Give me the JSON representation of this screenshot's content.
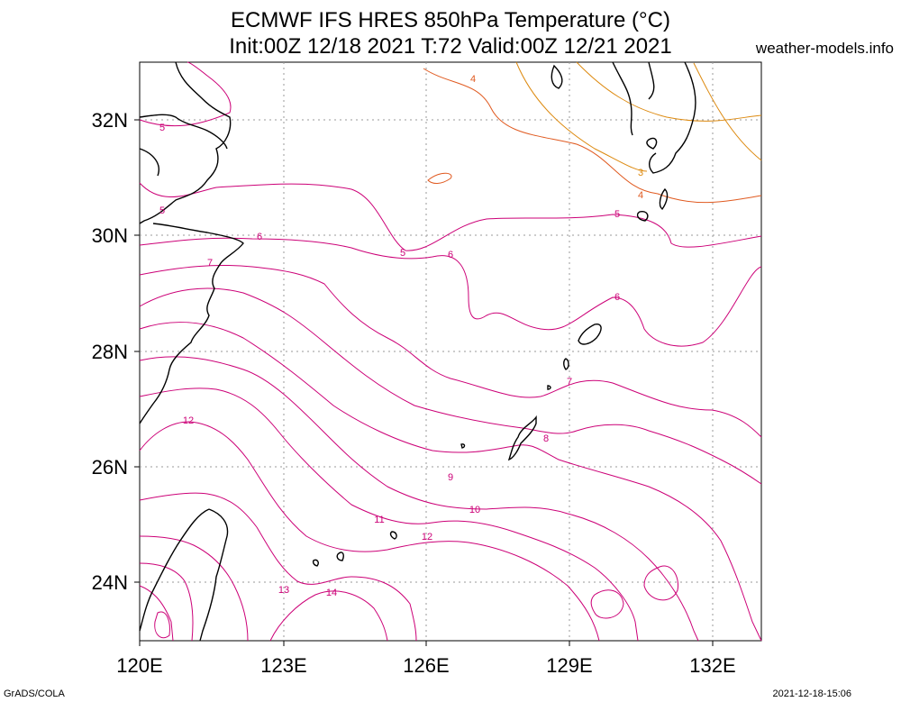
{
  "header": {
    "title_line1": "ECMWF IFS HRES 850hPa Temperature (°C)",
    "title_line2": "Init:00Z 12/18 2021 T:72 Valid:00Z 12/21 2021",
    "site": "weather-models.info"
  },
  "footer": {
    "left": "GrADS/COLA",
    "right": "2021-12-18-15:06"
  },
  "map": {
    "lon_ticks": [
      "120E",
      "123E",
      "126E",
      "129E",
      "132E"
    ],
    "lat_ticks": [
      "32N",
      "30N",
      "28N",
      "26N",
      "24N"
    ],
    "contour_labels": [
      "4",
      "5",
      "5",
      "5",
      "6",
      "6",
      "6",
      "7",
      "7",
      "8",
      "9",
      "10",
      "11",
      "12",
      "12",
      "13",
      "14",
      "3",
      "4",
      "5"
    ],
    "colors": {
      "warm": "#cc0077",
      "mid": "#e23060",
      "cold": "#e05a20",
      "colder": "#dd8a10",
      "coast": "#000000",
      "grid": "#999999"
    }
  }
}
